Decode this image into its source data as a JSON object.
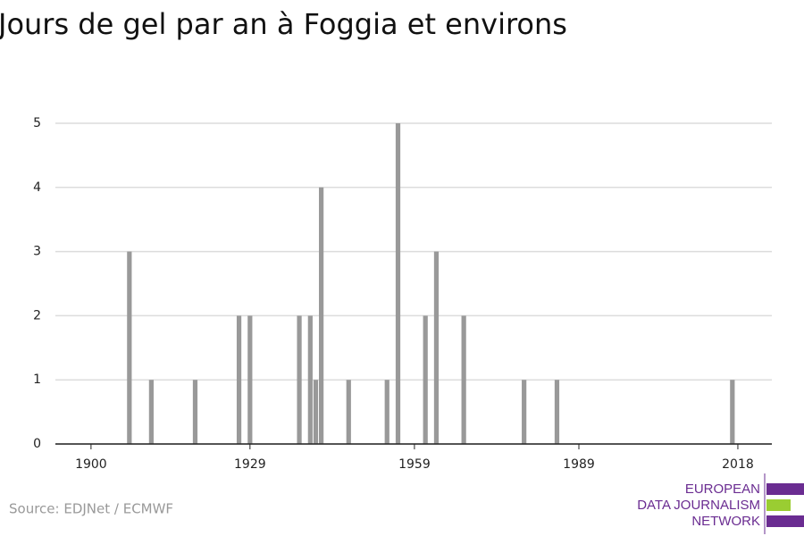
{
  "chart_data": {
    "type": "bar",
    "title": "Jours de gel par an à Foggia et environs",
    "x": [
      1907,
      1911,
      1919,
      1927,
      1929,
      1938,
      1940,
      1941,
      1942,
      1947,
      1954,
      1956,
      1961,
      1963,
      1968,
      1979,
      1985,
      2017
    ],
    "values": [
      3,
      1,
      1,
      2,
      2,
      2,
      2,
      1,
      4,
      1,
      1,
      5,
      2,
      3,
      2,
      1,
      1,
      1
    ],
    "color": "#999999",
    "xlim": [
      1893.5,
      2024.2
    ],
    "xticks": [
      1900,
      1929,
      1959,
      1989,
      2018
    ],
    "ylim": [
      0,
      5
    ],
    "yticks": [
      0,
      1,
      2,
      3,
      4,
      5
    ],
    "grid": true,
    "source": "Source: EDJNet / ECMWF"
  },
  "branding": {
    "lines": [
      "EUROPEAN",
      "DATA JOURNALISM",
      "NETWORK"
    ]
  }
}
